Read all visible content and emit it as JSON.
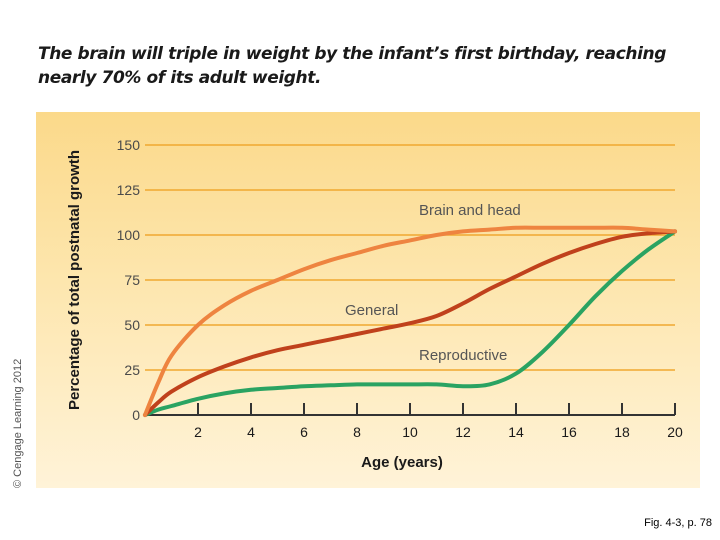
{
  "title": "The brain will triple in weight by the infant’s first birthday, reaching nearly 70% of its adult weight.",
  "copyright": "© Cengage Learning 2012",
  "figure_ref": "Fig. 4-3, p. 78",
  "colors": {
    "brain": "#ee8440",
    "general": "#c0411c",
    "reproductive": "#2aa362",
    "gridline": "#f0a830",
    "axis": "#333333"
  },
  "chart_data": {
    "type": "line",
    "title": "",
    "xlabel": "Age (years)",
    "ylabel": "Percentage of total postnatal growth",
    "xlim": [
      0,
      20
    ],
    "ylim": [
      0,
      150
    ],
    "x_ticks": [
      2,
      4,
      6,
      8,
      10,
      12,
      14,
      16,
      18,
      20
    ],
    "x_tick_labels": [
      "2",
      "4",
      "6",
      "8",
      "10",
      "12",
      "14",
      "16",
      "18",
      "20"
    ],
    "y_ticks": [
      0,
      25,
      50,
      75,
      100,
      125,
      150
    ],
    "y_tick_labels": [
      "0",
      "25",
      "50",
      "75",
      "100",
      "125",
      "150"
    ],
    "grid": true,
    "series": [
      {
        "name": "Brain and head",
        "x": [
          0,
          0.5,
          1,
          2,
          3,
          4,
          5,
          6,
          7,
          8,
          9,
          10,
          11,
          12,
          13,
          14,
          15,
          16,
          17,
          18,
          19,
          20
        ],
        "y": [
          0,
          18,
          33,
          50,
          61,
          69,
          75,
          81,
          86,
          90,
          94,
          97,
          100,
          102,
          103,
          104,
          104,
          104,
          104,
          104,
          103,
          102
        ]
      },
      {
        "name": "General",
        "x": [
          0,
          0.5,
          1,
          2,
          3,
          4,
          5,
          6,
          7,
          8,
          9,
          10,
          11,
          12,
          13,
          14,
          15,
          16,
          17,
          18,
          19,
          20
        ],
        "y": [
          0,
          7,
          13,
          21,
          27,
          32,
          36,
          39,
          42,
          45,
          48,
          51,
          55,
          62,
          70,
          77,
          84,
          90,
          95,
          99,
          101,
          102
        ]
      },
      {
        "name": "Reproductive",
        "x": [
          0,
          0.5,
          1,
          2,
          3,
          4,
          5,
          6,
          7,
          8,
          9,
          10,
          11,
          12,
          13,
          14,
          15,
          16,
          17,
          18,
          19,
          20
        ],
        "y": [
          0,
          3,
          5,
          9,
          12,
          14,
          15,
          16,
          16.5,
          17,
          17,
          17,
          17,
          16,
          17,
          23,
          35,
          50,
          66,
          80,
          92,
          102
        ]
      }
    ]
  }
}
